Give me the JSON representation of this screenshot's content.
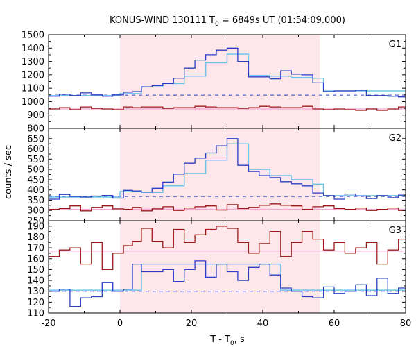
{
  "chart_data": {
    "type": "line",
    "title_prefix": "KONUS-WIND 130111 T",
    "title_sub": "0",
    "title_suffix": " = 6849s UT (01:54:09.000)",
    "xlabel_prefix": "T - T",
    "xlabel_sub": "0",
    "xlabel_suffix": ", s",
    "ylabel": "counts / sec",
    "xlim": [
      -20,
      80
    ],
    "x_ticks": [
      -20,
      0,
      20,
      40,
      60,
      80
    ],
    "shaded_interval": [
      0,
      56
    ],
    "colors": {
      "blue": "#2a3fc2",
      "red": "#9b1b1b",
      "cyan": "#6fc3e8",
      "pink": "#f2a8d4",
      "shade": "#fde7ea"
    },
    "panels": [
      {
        "name": "G1",
        "ylim": [
          800,
          1500
        ],
        "y_ticks": [
          800,
          900,
          1000,
          1100,
          1200,
          1300,
          1400,
          1500
        ],
        "bin_edges": [
          -20,
          -17,
          -14,
          -11,
          -8,
          -5,
          -2,
          1,
          3.5,
          6,
          9,
          12,
          15,
          18,
          21,
          24,
          27,
          30,
          33,
          36,
          39,
          42,
          45,
          48,
          51,
          54,
          57,
          60,
          63,
          66,
          69,
          72,
          75,
          78,
          80
        ],
        "blue": [
          1040,
          1055,
          1045,
          1065,
          1050,
          1040,
          1050,
          1070,
          1075,
          1110,
          1120,
          1135,
          1175,
          1250,
          1310,
          1350,
          1385,
          1400,
          1300,
          1185,
          1185,
          1170,
          1230,
          1205,
          1200,
          1140,
          1075,
          1080,
          1080,
          1085,
          1045,
          1045,
          1040,
          1035
        ],
        "red": [
          945,
          955,
          940,
          960,
          950,
          945,
          940,
          960,
          955,
          960,
          960,
          950,
          955,
          955,
          965,
          960,
          955,
          955,
          950,
          955,
          965,
          960,
          955,
          955,
          965,
          945,
          940,
          945,
          940,
          935,
          945,
          935,
          945,
          960
        ],
        "model_edges": [
          -20,
          0,
          6,
          12,
          18,
          24,
          30,
          36,
          42,
          48,
          54,
          57,
          80
        ],
        "model_blue": [
          1045,
          1060,
          1110,
          1135,
          1190,
          1290,
          1355,
          1195,
          1190,
          1180,
          1175,
          1080
        ],
        "bg_blue": 1048,
        "bg_red": 945
      },
      {
        "name": "G2",
        "ylim": [
          250,
          700
        ],
        "y_ticks": [
          250,
          300,
          350,
          400,
          450,
          500,
          550,
          600,
          650
        ],
        "bin_edges": [
          -20,
          -17,
          -14,
          -11,
          -8,
          -5,
          -2,
          1,
          3.5,
          6,
          9,
          12,
          15,
          18,
          21,
          24,
          27,
          30,
          33,
          36,
          39,
          42,
          45,
          48,
          51,
          54,
          57,
          60,
          63,
          66,
          69,
          72,
          75,
          78,
          80
        ],
        "blue": [
          355,
          378,
          368,
          365,
          370,
          373,
          360,
          398,
          395,
          390,
          408,
          438,
          477,
          530,
          555,
          580,
          615,
          650,
          520,
          490,
          470,
          460,
          440,
          430,
          420,
          385,
          372,
          355,
          380,
          370,
          358,
          372,
          362,
          375
        ],
        "red": [
          305,
          310,
          322,
          298,
          315,
          322,
          308,
          305,
          315,
          298,
          308,
          318,
          300,
          312,
          318,
          322,
          302,
          328,
          310,
          315,
          325,
          332,
          325,
          322,
          305,
          318,
          322,
          310,
          305,
          312,
          300,
          305,
          312,
          300
        ],
        "model_edges": [
          -20,
          0,
          6,
          12,
          18,
          24,
          30,
          36,
          42,
          48,
          54,
          57,
          80
        ],
        "model_blue": [
          365,
          392,
          388,
          420,
          480,
          545,
          625,
          500,
          470,
          450,
          428,
          372
        ],
        "bg_blue": 368,
        "bg_red": 306
      },
      {
        "name": "G3",
        "ylim": [
          110,
          195
        ],
        "y_ticks": [
          110,
          120,
          130,
          140,
          150,
          160,
          170,
          180,
          190
        ],
        "bin_edges": [
          -20,
          -17,
          -14,
          -11,
          -8,
          -5,
          -2,
          1,
          3.5,
          6,
          9,
          12,
          15,
          18,
          21,
          24,
          27,
          30,
          33,
          36,
          39,
          42,
          45,
          48,
          51,
          54,
          57,
          60,
          63,
          66,
          69,
          72,
          75,
          78,
          80
        ],
        "blue": [
          130,
          132,
          116,
          124,
          125,
          138,
          130,
          132,
          155,
          148,
          148,
          150,
          139,
          150,
          158,
          143,
          155,
          148,
          140,
          152,
          155,
          145,
          133,
          130,
          125,
          124,
          134,
          128,
          130,
          136,
          126,
          142,
          128,
          133
        ],
        "red": [
          162,
          168,
          170,
          155,
          175,
          150,
          165,
          172,
          176,
          188,
          176,
          170,
          187,
          175,
          182,
          187,
          190,
          188,
          175,
          165,
          174,
          185,
          162,
          175,
          185,
          178,
          168,
          175,
          165,
          170,
          175,
          155,
          168,
          178
        ],
        "model_edges": [
          -20,
          6,
          45,
          80
        ],
        "model_blue": [
          131,
          155,
          131
        ],
        "bg_blue": 130,
        "bg_red": 167
      }
    ]
  }
}
